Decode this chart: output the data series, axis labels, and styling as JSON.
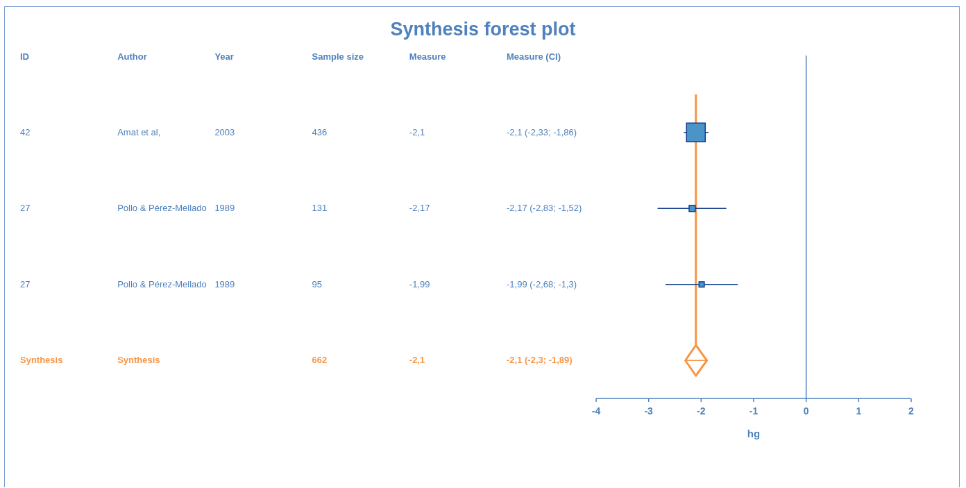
{
  "chart_data": {
    "type": "scatter",
    "orientation": "horizontal",
    "title": "Synthesis forest plot",
    "xlabel": "hg",
    "categories": [
      null,
      null,
      null,
      null
    ],
    "series": [
      {
        "marker": "square",
        "color": "#4a94c8",
        "values": [
          -2.1,
          -2.17,
          -1.99,
          null
        ],
        "errors": [
          [
            -2.33,
            -1.86
          ],
          [
            -2.83,
            -1.52
          ],
          [
            -2.68,
            -1.3
          ],
          null
        ],
        "sizes": [
          1,
          0.11,
          0.08,
          null
        ]
      },
      {
        "marker": "diamond",
        "color": "#f79646",
        "values": [
          null,
          null,
          null,
          -2.1
        ],
        "errors": [
          null,
          null,
          null,
          [
            -2.3,
            -1.89
          ]
        ]
      }
    ],
    "xlim": [
      -4,
      2
    ],
    "xticks": [
      -4,
      -3,
      -2,
      -1,
      0,
      1,
      2
    ],
    "ref_lines": [
      {
        "axis": "x",
        "value": 0,
        "color": "#4f81bd"
      },
      {
        "axis": "x",
        "value": -2.1,
        "color": "#f79646"
      }
    ],
    "annotations": [
      "ID",
      "Author",
      "Year",
      "Sample size",
      "Measure",
      "Measure (CI)",
      "42",
      "Amat et al,",
      "436",
      "-2,1",
      "-2,1 (-2,33; -1,86)",
      "2003",
      "27",
      "Pollo & Pérez-Mellado",
      "131",
      "-2,17",
      "-2,17 (-2,83; -1,52)",
      "1989",
      "27",
      "Pollo & Pérez-Mellado",
      "95",
      "-1,99",
      "-1,99 (-2,68; -1,3)",
      "1989",
      "Synthesis",
      "Synthesis",
      "662",
      "-2,1",
      "-2,1 (-2,3; -1,89)"
    ]
  }
}
